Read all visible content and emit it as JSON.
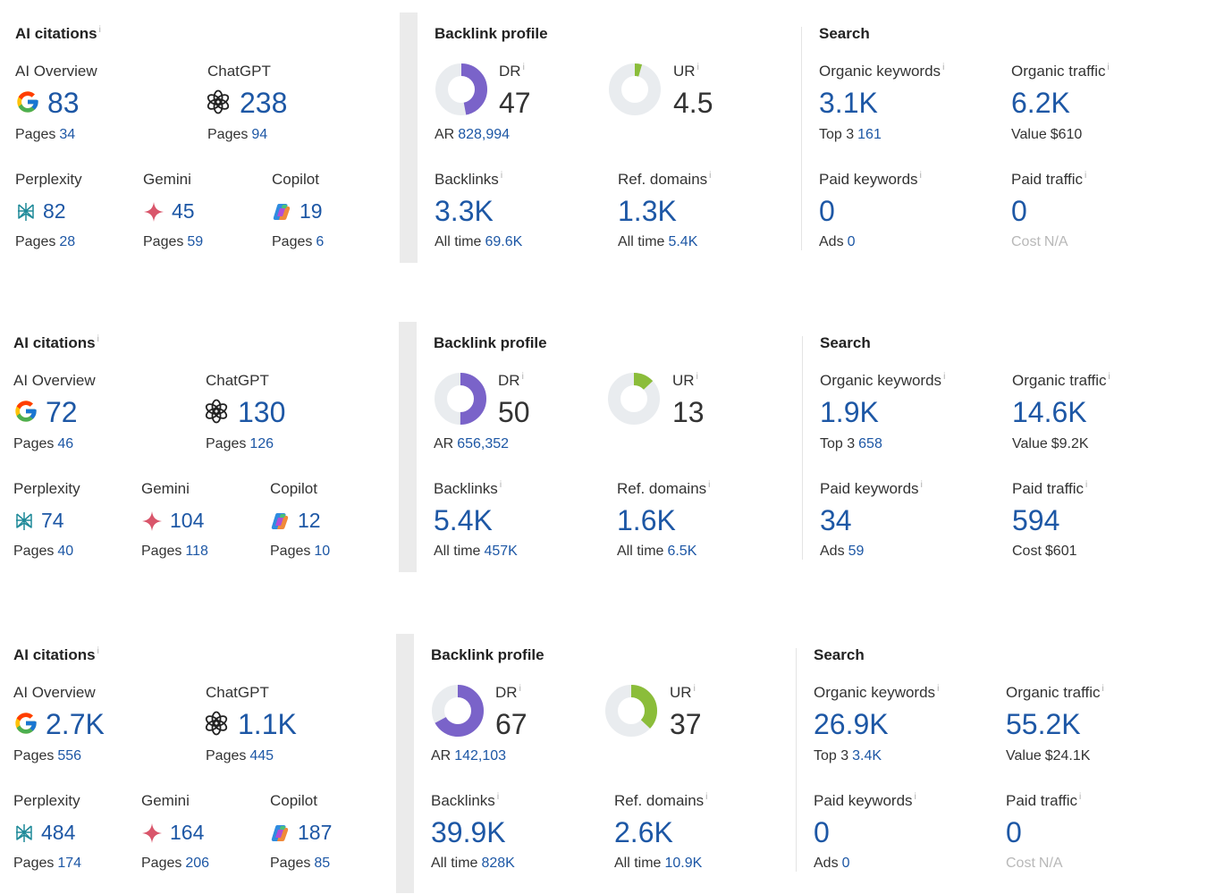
{
  "labels": {
    "ai_citations": "AI citations",
    "ai_overview": "AI Overview",
    "chatgpt": "ChatGPT",
    "perplexity": "Perplexity",
    "gemini": "Gemini",
    "copilot": "Copilot",
    "pages": "Pages",
    "backlink_profile": "Backlink profile",
    "dr": "DR",
    "ur": "UR",
    "ar": "AR",
    "backlinks": "Backlinks",
    "ref_domains": "Ref. domains",
    "all_time": "All time",
    "search": "Search",
    "organic_keywords": "Organic keywords",
    "organic_traffic": "Organic traffic",
    "top3": "Top 3",
    "value": "Value",
    "paid_keywords": "Paid keywords",
    "paid_traffic": "Paid traffic",
    "ads": "Ads",
    "cost": "Cost",
    "info": "i"
  },
  "colors": {
    "accent_blue": "#1d57a5",
    "dr_purple": "#7a63c9",
    "ur_green": "#8bbd3a",
    "ring_grey": "#e9ecef",
    "muted": "#b8b8b8"
  },
  "icons": {
    "ai_overview": "google-g-icon",
    "chatgpt": "chatgpt-icon",
    "perplexity": "perplexity-icon",
    "gemini": "gemini-star-icon",
    "copilot": "copilot-icon"
  },
  "rows": [
    {
      "ai": {
        "ai_overview": "83",
        "ai_overview_pages": "34",
        "chatgpt": "238",
        "chatgpt_pages": "94",
        "perplexity": "82",
        "perplexity_pages": "28",
        "gemini": "45",
        "gemini_pages": "59",
        "copilot": "19",
        "copilot_pages": "6"
      },
      "backlinks": {
        "dr": "47",
        "dr_fraction": 0.47,
        "ur": "4.5",
        "ur_fraction": 0.045,
        "ar": "828,994",
        "backlinks": "3.3K",
        "backlinks_all_time": "69.6K",
        "ref_domains": "1.3K",
        "ref_domains_all_time": "5.4K"
      },
      "search": {
        "organic_keywords": "3.1K",
        "top3": "161",
        "organic_traffic": "6.2K",
        "value": "$610",
        "paid_keywords": "0",
        "ads": "0",
        "paid_traffic": "0",
        "cost": "N/A"
      }
    },
    {
      "ai": {
        "ai_overview": "72",
        "ai_overview_pages": "46",
        "chatgpt": "130",
        "chatgpt_pages": "126",
        "perplexity": "74",
        "perplexity_pages": "40",
        "gemini": "104",
        "gemini_pages": "118",
        "copilot": "12",
        "copilot_pages": "10"
      },
      "backlinks": {
        "dr": "50",
        "dr_fraction": 0.5,
        "ur": "13",
        "ur_fraction": 0.13,
        "ar": "656,352",
        "backlinks": "5.4K",
        "backlinks_all_time": "457K",
        "ref_domains": "1.6K",
        "ref_domains_all_time": "6.5K"
      },
      "search": {
        "organic_keywords": "1.9K",
        "top3": "658",
        "organic_traffic": "14.6K",
        "value": "$9.2K",
        "paid_keywords": "34",
        "ads": "59",
        "paid_traffic": "594",
        "cost": "$601"
      }
    },
    {
      "ai": {
        "ai_overview": "2.7K",
        "ai_overview_pages": "556",
        "chatgpt": "1.1K",
        "chatgpt_pages": "445",
        "perplexity": "484",
        "perplexity_pages": "174",
        "gemini": "164",
        "gemini_pages": "206",
        "copilot": "187",
        "copilot_pages": "85"
      },
      "backlinks": {
        "dr": "67",
        "dr_fraction": 0.67,
        "ur": "37",
        "ur_fraction": 0.37,
        "ar": "142,103",
        "backlinks": "39.9K",
        "backlinks_all_time": "828K",
        "ref_domains": "2.6K",
        "ref_domains_all_time": "10.9K"
      },
      "search": {
        "organic_keywords": "26.9K",
        "top3": "3.4K",
        "organic_traffic": "55.2K",
        "value": "$24.1K",
        "paid_keywords": "0",
        "ads": "0",
        "paid_traffic": "0",
        "cost": "N/A"
      }
    }
  ]
}
